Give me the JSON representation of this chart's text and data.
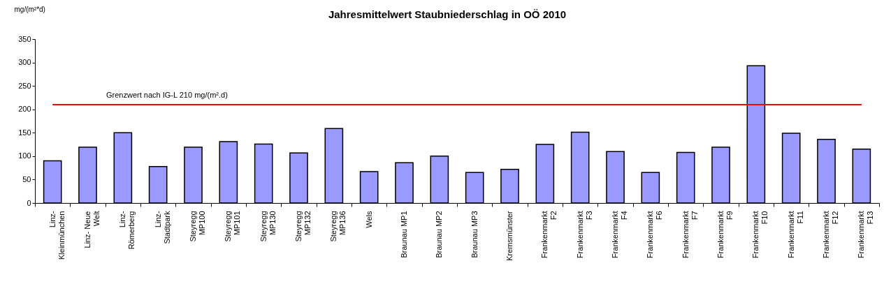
{
  "chart_data": {
    "type": "bar",
    "title": "Jahresmittelwert Staubniederschlag in OÖ 2010",
    "ylabel": "mg/(m²*d)",
    "categories": [
      "Linz-Kleinmünchen",
      "Linz- Neue Welt",
      "Linz-Römerberg",
      "Linz-Stadtpark",
      "Steyregg MP100",
      "Steyregg MP101",
      "Steyregg MP130",
      "Steyregg MP132",
      "Steyregg MP136",
      "Wels",
      "Braunau MP1",
      "Braunau MP2",
      "Braunau MP3",
      "Kremsmünster",
      "Frankenmarkt F2",
      "Frankenmarkt F3",
      "Frankenmarkt F4",
      "Frankenmarkt F6",
      "Frankenmarkt F7",
      "Frankenmarkt F9",
      "Frankenmarkt F10",
      "Frankenmarkt F11",
      "Frankenmarkt F12",
      "Frankenmarkt F13"
    ],
    "values": [
      90,
      119,
      150,
      78,
      119,
      131,
      126,
      107,
      159,
      67,
      86,
      100,
      65,
      72,
      125,
      151,
      110,
      65,
      108,
      119,
      293,
      149,
      136,
      115
    ],
    "color": "#9999ff",
    "ylim": [
      0,
      350
    ],
    "yticks": [
      0,
      50,
      100,
      150,
      200,
      250,
      300,
      350
    ],
    "grid": false,
    "ref_lines": [
      {
        "axis": "y",
        "value": 210,
        "label": "Grenzwert nach IG-L 210 mg/(m².d)",
        "color": "#ff0000"
      }
    ]
  }
}
